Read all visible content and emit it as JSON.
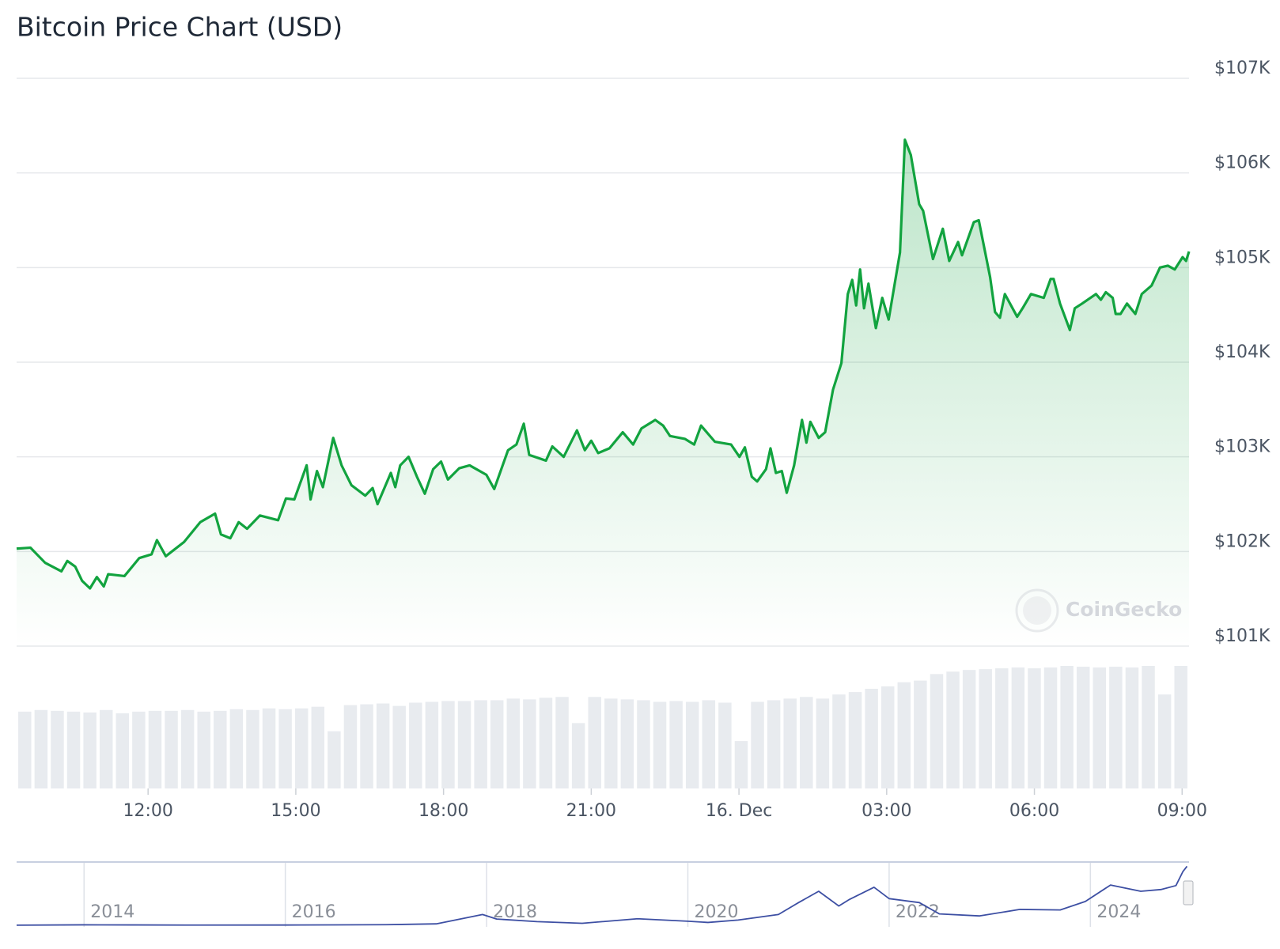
{
  "chart_data": [
    {
      "type": "area",
      "title": "Bitcoin Price Chart (USD)",
      "watermark": "CoinGecko",
      "color": "#12a33f",
      "grid": true,
      "ylim": [
        101000,
        107000
      ],
      "yticks": [
        {
          "value": 101000,
          "label": "$101K"
        },
        {
          "value": 102000,
          "label": "$102K"
        },
        {
          "value": 103000,
          "label": "$103K"
        },
        {
          "value": 104000,
          "label": "$104K"
        },
        {
          "value": 105000,
          "label": "$105K"
        },
        {
          "value": 106000,
          "label": "$106K"
        },
        {
          "value": 107000,
          "label": "$107K"
        }
      ],
      "xlim": [
        9.33,
        33.14
      ],
      "xticks": [
        {
          "value": 12,
          "label": "12:00"
        },
        {
          "value": 15,
          "label": "15:00"
        },
        {
          "value": 18,
          "label": "18:00"
        },
        {
          "value": 21,
          "label": "21:00"
        },
        {
          "value": 24,
          "label": "16. Dec"
        },
        {
          "value": 27,
          "label": "03:00"
        },
        {
          "value": 30,
          "label": "06:00"
        },
        {
          "value": 33,
          "label": "09:00"
        }
      ],
      "x": [
        9.33,
        9.61,
        9.91,
        10.24,
        10.36,
        10.52,
        10.66,
        10.82,
        10.96,
        11.1,
        11.19,
        11.52,
        11.82,
        12.07,
        12.18,
        12.36,
        12.73,
        13.06,
        13.36,
        13.48,
        13.67,
        13.84,
        14.01,
        14.27,
        14.64,
        14.8,
        14.97,
        15.22,
        15.3,
        15.43,
        15.55,
        15.76,
        15.93,
        16.13,
        16.41,
        16.56,
        16.66,
        16.93,
        17.02,
        17.12,
        17.29,
        17.46,
        17.62,
        17.79,
        17.95,
        18.09,
        18.32,
        18.53,
        18.87,
        19.03,
        19.31,
        19.48,
        19.63,
        19.74,
        20.08,
        20.21,
        20.44,
        20.71,
        20.87,
        21.0,
        21.14,
        21.37,
        21.64,
        21.85,
        22.02,
        22.3,
        22.46,
        22.6,
        22.9,
        23.09,
        23.23,
        23.51,
        23.84,
        24.01,
        24.12,
        24.26,
        24.37,
        24.55,
        24.64,
        24.75,
        24.87,
        24.97,
        25.12,
        25.28,
        25.37,
        25.45,
        25.62,
        25.75,
        25.91,
        26.08,
        26.21,
        26.3,
        26.38,
        26.46,
        26.54,
        26.63,
        26.78,
        26.91,
        27.04,
        27.27,
        27.37,
        27.49,
        27.66,
        27.74,
        27.94,
        28.14,
        28.27,
        28.45,
        28.53,
        28.77,
        28.87,
        29.1,
        29.2,
        29.3,
        29.4,
        29.65,
        29.76,
        29.93,
        30.19,
        30.33,
        30.39,
        30.52,
        30.72,
        30.82,
        30.97,
        31.25,
        31.35,
        31.45,
        31.59,
        31.65,
        31.75,
        31.88,
        32.05,
        32.18,
        32.38,
        32.55,
        32.71,
        32.85,
        33.01,
        33.08,
        33.14
      ],
      "values": [
        102030,
        102040,
        101880,
        101790,
        101900,
        101840,
        101690,
        101610,
        101730,
        101630,
        101760,
        101740,
        101930,
        101970,
        102120,
        101950,
        102100,
        102310,
        102400,
        102180,
        102140,
        102310,
        102240,
        102380,
        102330,
        102560,
        102550,
        102910,
        102550,
        102850,
        102680,
        103200,
        102910,
        102700,
        102590,
        102670,
        102500,
        102830,
        102680,
        102910,
        103000,
        102790,
        102610,
        102870,
        102950,
        102760,
        102880,
        102910,
        102810,
        102660,
        103070,
        103130,
        103350,
        103020,
        102960,
        103110,
        103000,
        103280,
        103070,
        103170,
        103040,
        103090,
        103260,
        103130,
        103300,
        103390,
        103330,
        103220,
        103190,
        103130,
        103330,
        103160,
        103130,
        103000,
        103100,
        102790,
        102740,
        102870,
        103090,
        102830,
        102850,
        102620,
        102910,
        103390,
        103150,
        103370,
        103200,
        103260,
        103710,
        103990,
        104720,
        104870,
        104600,
        104980,
        104570,
        104830,
        104360,
        104680,
        104450,
        105160,
        106350,
        106190,
        105670,
        105600,
        105090,
        105410,
        105070,
        105270,
        105130,
        105480,
        105500,
        104900,
        104530,
        104470,
        104720,
        104480,
        104570,
        104720,
        104680,
        104880,
        104880,
        104620,
        104340,
        104570,
        104620,
        104720,
        104660,
        104740,
        104680,
        104510,
        104510,
        104620,
        104510,
        104720,
        104810,
        105000,
        105020,
        104980,
        105110,
        105070,
        105170
      ]
    },
    {
      "type": "bar",
      "color": "#e8ebef",
      "ylim": [
        0,
        150
      ],
      "values": [
        94,
        96,
        95,
        94,
        93,
        96,
        92,
        94,
        95,
        95,
        96,
        94,
        95,
        97,
        96,
        98,
        97,
        98,
        100,
        70,
        102,
        103,
        104,
        101,
        105,
        106,
        107,
        107,
        108,
        108,
        110,
        109,
        111,
        112,
        80,
        112,
        110,
        109,
        108,
        106,
        107,
        106,
        108,
        105,
        58,
        106,
        108,
        110,
        112,
        110,
        115,
        118,
        122,
        125,
        130,
        132,
        140,
        143,
        145,
        146,
        147,
        148,
        147,
        148,
        150,
        149,
        148,
        149,
        148,
        150,
        115,
        150
      ]
    },
    {
      "type": "line",
      "color": "#3d4fa3",
      "xlim": [
        2013.33,
        2024.98
      ],
      "ylim": [
        0,
        106000
      ],
      "xticks": [
        2014,
        2016,
        2018,
        2020,
        2022,
        2024
      ],
      "x": [
        2013.33,
        2014.0,
        2014.5,
        2015.0,
        2016.0,
        2016.5,
        2017.0,
        2017.5,
        2017.96,
        2018.1,
        2018.5,
        2018.95,
        2019.5,
        2020.0,
        2020.2,
        2020.5,
        2020.9,
        2021.1,
        2021.3,
        2021.5,
        2021.6,
        2021.85,
        2022.0,
        2022.3,
        2022.5,
        2022.9,
        2023.3,
        2023.7,
        2023.95,
        2024.2,
        2024.5,
        2024.7,
        2024.85,
        2024.92,
        2024.96
      ],
      "values": [
        130,
        800,
        600,
        300,
        430,
        650,
        1000,
        2500,
        19000,
        11000,
        6500,
        3500,
        11500,
        7200,
        5000,
        9200,
        19000,
        40000,
        60000,
        34000,
        45000,
        67000,
        47000,
        40000,
        20000,
        16500,
        28000,
        27000,
        42000,
        71000,
        60000,
        63000,
        70000,
        95000,
        104000
      ]
    }
  ]
}
